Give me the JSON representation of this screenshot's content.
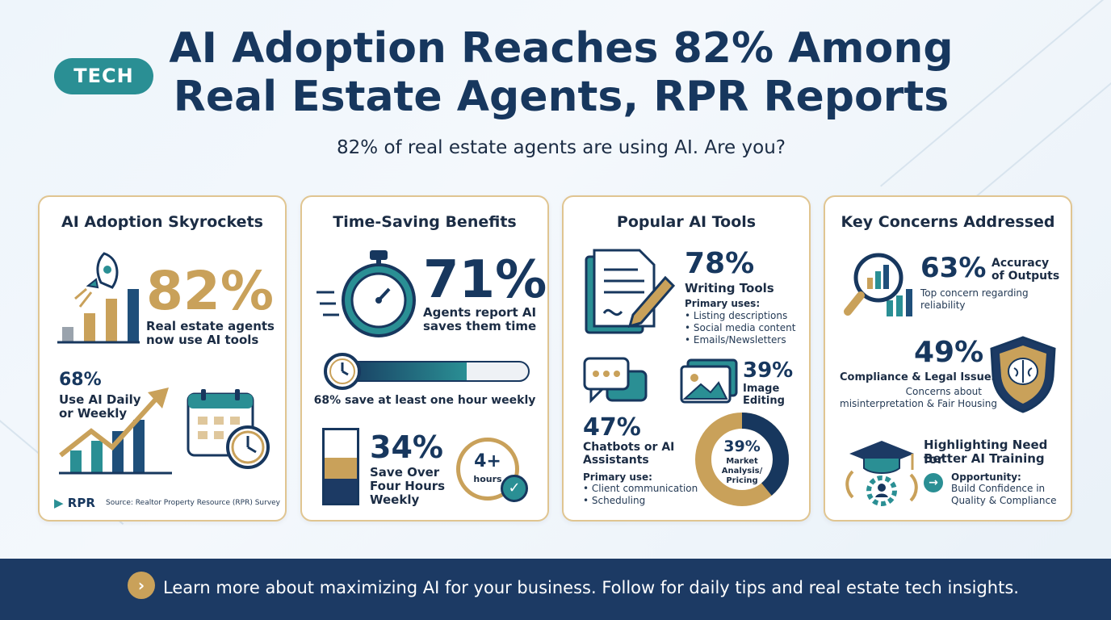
{
  "header": {
    "tag": "TECH",
    "title_line1": "AI Adoption Reaches 82% Among",
    "title_line2": "Real Estate Agents, RPR Reports",
    "subtitle": "82% of real estate agents are using AI. Are you?"
  },
  "colors": {
    "navy": "#17375e",
    "teal": "#2a8f94",
    "gold": "#c9a15a",
    "footer_bg": "#1c3a64"
  },
  "card1": {
    "title": "AI Adoption Skyrockets",
    "stat": "82%",
    "stat_label_1": "Real estate agents",
    "stat_label_2": "now use AI tools",
    "daily_stat": "68%",
    "daily_label_1": "Use AI Daily",
    "daily_label_2": "or Weekly",
    "logo": "RPR",
    "source": "Source: Realtor Property Resource (RPR) Survey"
  },
  "card2": {
    "title": "Time-Saving Benefits",
    "stat": "71%",
    "stat_label_1": "Agents report AI",
    "stat_label_2": "saves them time",
    "progress_value": 0.68,
    "progress_label": "68% save at least one hour weekly",
    "stat2": "34%",
    "stat2_label_1": "Save Over",
    "stat2_label_2": "Four Hours",
    "stat2_label_3": "Weekly",
    "badge_value": "4+",
    "badge_unit": "hours"
  },
  "card3": {
    "title": "Popular AI Tools",
    "writing_stat": "78%",
    "writing_label": "Writing Tools",
    "writing_uses_title": "Primary uses:",
    "writing_uses": [
      "• Listing descriptions",
      "• Social media content",
      "• Emails/Newsletters"
    ],
    "image_stat": "39%",
    "image_label_1": "Image",
    "image_label_2": "Editing",
    "chat_stat": "47%",
    "chat_label_1": "Chatbots or AI",
    "chat_label_2": "Assistants",
    "chat_uses_title": "Primary use:",
    "chat_uses": [
      "• Client communication",
      "• Scheduling"
    ],
    "donut_value": 0.39,
    "donut_stat": "39%",
    "donut_label_1": "Market",
    "donut_label_2": "Analysis/",
    "donut_label_3": "Pricing"
  },
  "card4": {
    "title": "Key Concerns Addressed",
    "accuracy_stat": "63%",
    "accuracy_label_1": "Accuracy",
    "accuracy_label_2": "of Outputs",
    "accuracy_desc_1": "Top concern regarding",
    "accuracy_desc_2": "reliability",
    "compliance_stat": "49%",
    "compliance_label": "Compliance & Legal Issues",
    "compliance_desc_1": "Concerns about",
    "compliance_desc_2": "misinterpretation & Fair Housing",
    "training_label_1": "Highlighting Need for",
    "training_label_2": "Better AI Training",
    "opportunity_title": "Opportunity:",
    "opportunity_1": "Build Confidence in",
    "opportunity_2": "Quality & Compliance"
  },
  "footer": {
    "arrow": "›",
    "text": "Learn more about maximizing AI for your business. Follow for daily tips and real estate tech insights."
  }
}
